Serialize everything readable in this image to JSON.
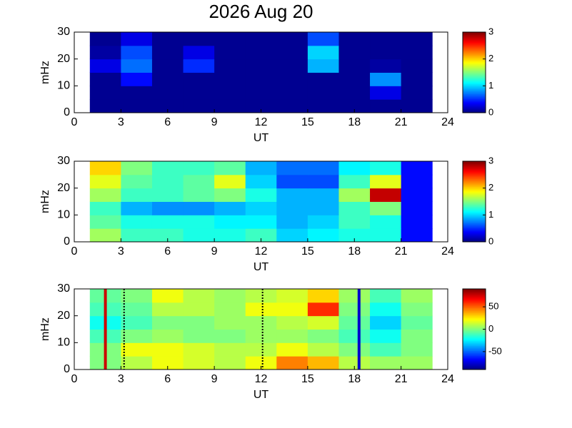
{
  "chart_data": [
    {
      "type": "heatmap",
      "title": "2026 Aug 20",
      "xlabel": "UT",
      "ylabel": "mHz",
      "colormap": "jet",
      "xlim": [
        0,
        24
      ],
      "xticks": [
        0,
        3,
        6,
        9,
        12,
        15,
        18,
        21,
        24
      ],
      "ylim": [
        0,
        30
      ],
      "yticks": [
        0,
        10,
        20,
        30
      ],
      "xbins": [
        1,
        3,
        5,
        7,
        9,
        11,
        13,
        15,
        17,
        19,
        21,
        23
      ],
      "ybins": [
        0,
        5,
        10,
        15,
        20,
        25,
        30
      ],
      "values": [
        [
          0.05,
          0.05,
          0.05,
          0.05,
          0.05,
          0.05,
          0.05,
          0.05,
          0.05,
          0.05,
          0.05
        ],
        [
          0.05,
          0.05,
          0.05,
          0.05,
          0.05,
          0.05,
          0.05,
          0.05,
          0.05,
          0.3,
          0.05
        ],
        [
          0.05,
          0.4,
          0.05,
          0.05,
          0.05,
          0.05,
          0.05,
          0.05,
          0.05,
          0.8,
          0.05
        ],
        [
          0.3,
          0.7,
          0.05,
          0.5,
          0.05,
          0.05,
          0.05,
          0.9,
          0.05,
          0.1,
          0.05
        ],
        [
          0.1,
          0.6,
          0.05,
          0.3,
          0.05,
          0.05,
          0.05,
          1.0,
          0.05,
          0.05,
          0.05
        ],
        [
          0.05,
          0.3,
          0.05,
          0.05,
          0.05,
          0.05,
          0.05,
          0.6,
          0.05,
          0.05,
          0.05
        ]
      ],
      "clim": [
        0,
        3
      ],
      "cticks": [
        0,
        1,
        2,
        3
      ]
    },
    {
      "type": "heatmap",
      "xlabel": "UT",
      "ylabel": "mHz",
      "colormap": "jet",
      "xlim": [
        0,
        24
      ],
      "xticks": [
        0,
        3,
        6,
        9,
        12,
        15,
        18,
        21,
        24
      ],
      "ylim": [
        0,
        30
      ],
      "yticks": [
        0,
        10,
        20,
        30
      ],
      "xbins": [
        1,
        3,
        5,
        7,
        9,
        11,
        13,
        15,
        17,
        19,
        21,
        23
      ],
      "ybins": [
        0,
        5,
        10,
        15,
        20,
        25,
        30
      ],
      "values": [
        [
          1.6,
          1.3,
          1.3,
          1.2,
          1.2,
          1.3,
          1.0,
          1.1,
          1.2,
          1.2,
          0.4
        ],
        [
          1.4,
          1.2,
          1.2,
          1.2,
          1.1,
          1.1,
          0.9,
          1.0,
          1.3,
          1.2,
          0.4
        ],
        [
          1.3,
          0.9,
          0.8,
          0.8,
          0.9,
          1.0,
          0.9,
          0.9,
          1.3,
          1.5,
          0.4
        ],
        [
          1.6,
          1.3,
          1.3,
          1.4,
          1.5,
          1.2,
          0.9,
          0.9,
          1.6,
          2.8,
          0.4
        ],
        [
          1.8,
          1.4,
          1.3,
          1.4,
          1.8,
          1.0,
          0.6,
          0.6,
          1.3,
          1.8,
          0.4
        ],
        [
          2.0,
          1.5,
          1.3,
          1.3,
          1.4,
          0.9,
          0.7,
          0.7,
          1.1,
          1.2,
          0.4
        ]
      ],
      "clim": [
        0,
        3
      ],
      "cticks": [
        0,
        1,
        2,
        3
      ]
    },
    {
      "type": "heatmap",
      "xlabel": "UT",
      "ylabel": "mHz",
      "colormap": "jet",
      "xlim": [
        0,
        24
      ],
      "xticks": [
        0,
        3,
        6,
        9,
        12,
        15,
        18,
        21,
        24
      ],
      "ylim": [
        0,
        30
      ],
      "yticks": [
        0,
        10,
        20,
        30
      ],
      "xbins": [
        1,
        3,
        5,
        7,
        9,
        11,
        13,
        15,
        17,
        19,
        21,
        23
      ],
      "ybins": [
        0,
        5,
        10,
        15,
        20,
        25,
        30
      ],
      "values": [
        [
          0,
          10,
          20,
          15,
          10,
          20,
          45,
          35,
          10,
          5,
          5
        ],
        [
          0,
          20,
          20,
          15,
          10,
          10,
          20,
          10,
          0,
          -10,
          0
        ],
        [
          -10,
          0,
          5,
          0,
          0,
          5,
          5,
          0,
          -10,
          -20,
          0
        ],
        [
          -20,
          -10,
          0,
          0,
          5,
          5,
          10,
          15,
          -5,
          -30,
          -5
        ],
        [
          -10,
          -5,
          10,
          10,
          5,
          20,
          20,
          60,
          0,
          -20,
          0
        ],
        [
          -5,
          0,
          20,
          10,
          5,
          10,
          15,
          30,
          5,
          -10,
          5
        ]
      ],
      "clim": [
        -90,
        90
      ],
      "cticks": [
        -50,
        0,
        50
      ],
      "vlines": [
        {
          "x": 2,
          "color": "#cc0000",
          "dash": false
        },
        {
          "x": 3.2,
          "color": "#000000",
          "dash": true
        },
        {
          "x": 12.1,
          "color": "#000000",
          "dash": true
        },
        {
          "x": 18.3,
          "color": "#0000cc",
          "dash": false
        }
      ]
    }
  ]
}
